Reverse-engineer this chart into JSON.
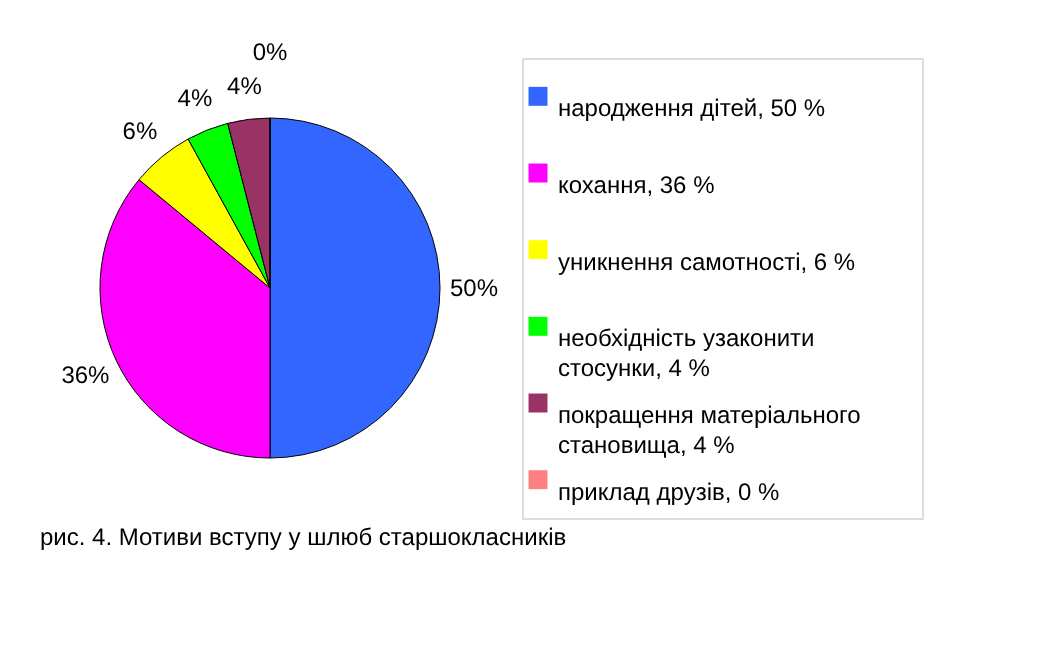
{
  "chart_data": {
    "type": "pie",
    "categories": [
      "народження дітей, 50 %",
      "кохання, 36 %",
      "уникнення самотності, 6 %",
      "необхідність узаконити стосунки, 4 %",
      "покращення матеріального становища, 4 %",
      "приклад друзів, 0 %"
    ],
    "values": [
      50,
      36,
      6,
      4,
      4,
      0
    ],
    "colors": [
      "#3366ff",
      "#ff00ff",
      "#ffff00",
      "#00ff00",
      "#993366",
      "#ff8080"
    ],
    "value_labels": [
      "50%",
      "36%",
      "6%",
      "4%",
      "4%",
      "0%"
    ],
    "legend": "right",
    "annotations": [
      "рис. 4. Мотиви вступу у шлюб старшокласників"
    ]
  }
}
